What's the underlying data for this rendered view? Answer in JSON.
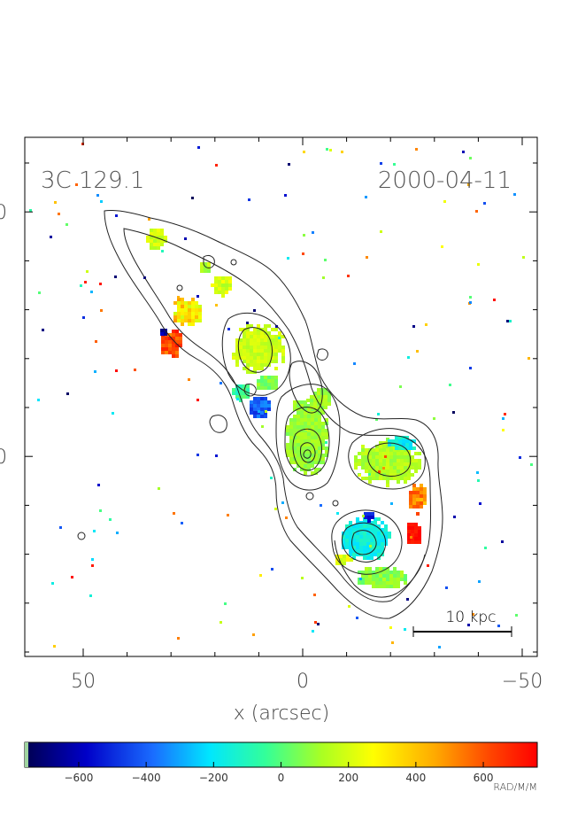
{
  "source": "3C 129.1",
  "date": "2000-04-11",
  "scale_bar_label": "10 kpc",
  "x_axis": {
    "label": "x (arcsec)",
    "ticks": [
      50,
      0,
      -50
    ],
    "tick_labels": [
      "50",
      "0",
      "−50"
    ]
  },
  "y_axis": {
    "tick_labels": [
      "0",
      "0"
    ]
  },
  "colorbar": {
    "ticks": [
      -600,
      -400,
      -200,
      0,
      200,
      400,
      600
    ],
    "tick_labels": [
      "−600",
      "−400",
      "−200",
      "0",
      "200",
      "400",
      "600"
    ],
    "unit": "RAD/M/M",
    "range": [
      -760,
      760
    ],
    "colors": [
      "#000050",
      "#0000c8",
      "#1a6cff",
      "#00e6ff",
      "#33ff99",
      "#aaff22",
      "#ffff00",
      "#ffaa00",
      "#ff4400",
      "#ff0000"
    ]
  },
  "colors": {
    "frame": "#000000",
    "contour": "#222222",
    "background": "#ffffff"
  }
}
